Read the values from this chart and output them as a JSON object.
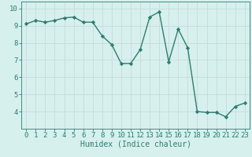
{
  "x": [
    0,
    1,
    2,
    3,
    4,
    5,
    6,
    7,
    8,
    9,
    10,
    11,
    12,
    13,
    14,
    15,
    16,
    17,
    18,
    19,
    20,
    21,
    22,
    23
  ],
  "y": [
    9.1,
    9.3,
    9.2,
    9.3,
    9.45,
    9.5,
    9.2,
    9.2,
    8.4,
    7.9,
    6.8,
    6.8,
    7.6,
    9.5,
    9.8,
    6.9,
    8.8,
    7.7,
    4.0,
    3.95,
    3.95,
    3.7,
    4.3,
    4.5
  ],
  "line_color": "#2e7d6e",
  "marker": "D",
  "marker_size": 2.2,
  "bg_color": "#d6f0ee",
  "grid_color": "#c8dada",
  "xlabel": "Humidex (Indice chaleur)",
  "xlim": [
    -0.5,
    23.5
  ],
  "ylim": [
    3.0,
    10.4
  ],
  "yticks": [
    4,
    5,
    6,
    7,
    8,
    9,
    10
  ],
  "xticks": [
    0,
    1,
    2,
    3,
    4,
    5,
    6,
    7,
    8,
    9,
    10,
    11,
    12,
    13,
    14,
    15,
    16,
    17,
    18,
    19,
    20,
    21,
    22,
    23
  ],
  "tick_color": "#2e7d6e",
  "label_fontsize": 6.5,
  "axis_fontsize": 7.0,
  "linewidth": 1.0
}
